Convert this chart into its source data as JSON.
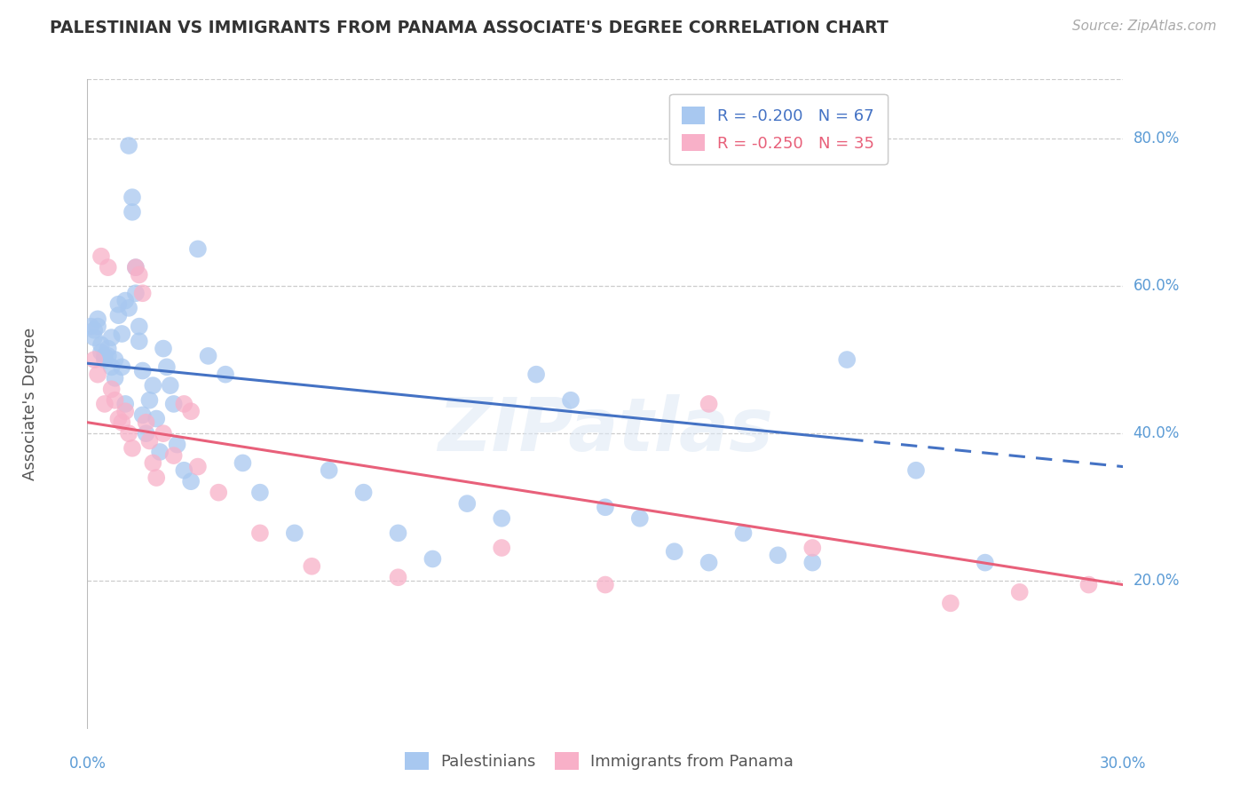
{
  "title": "PALESTINIAN VS IMMIGRANTS FROM PANAMA ASSOCIATE'S DEGREE CORRELATION CHART",
  "source": "Source: ZipAtlas.com",
  "ylabel": "Associate's Degree",
  "xmin": 0.0,
  "xmax": 0.3,
  "ymin": 0.0,
  "ymax": 0.88,
  "yticks": [
    0.2,
    0.4,
    0.6,
    0.8
  ],
  "ytick_labels": [
    "20.0%",
    "40.0%",
    "60.0%",
    "80.0%"
  ],
  "grid_color": "#cccccc",
  "watermark": "ZIPatlas",
  "series1_color": "#a8c8f0",
  "series2_color": "#f8b0c8",
  "series1_name": "Palestinians",
  "series2_name": "Immigrants from Panama",
  "series1_R": -0.2,
  "series1_N": 67,
  "series2_R": -0.25,
  "series2_N": 35,
  "trendline1_color": "#4472c4",
  "trendline2_color": "#e8607a",
  "background_color": "#ffffff",
  "trendline1_y0": 0.495,
  "trendline1_y1": 0.355,
  "trendline2_y0": 0.415,
  "trendline2_y1": 0.195,
  "trendline1_solid_end": 0.22,
  "palestinians_x": [
    0.001,
    0.002,
    0.002,
    0.003,
    0.003,
    0.004,
    0.004,
    0.005,
    0.005,
    0.006,
    0.006,
    0.007,
    0.007,
    0.008,
    0.008,
    0.009,
    0.009,
    0.01,
    0.01,
    0.011,
    0.011,
    0.012,
    0.012,
    0.013,
    0.013,
    0.014,
    0.014,
    0.015,
    0.015,
    0.016,
    0.016,
    0.017,
    0.018,
    0.019,
    0.02,
    0.021,
    0.022,
    0.023,
    0.024,
    0.025,
    0.026,
    0.028,
    0.03,
    0.032,
    0.035,
    0.04,
    0.045,
    0.05,
    0.06,
    0.07,
    0.08,
    0.09,
    0.1,
    0.11,
    0.12,
    0.13,
    0.14,
    0.15,
    0.16,
    0.17,
    0.18,
    0.19,
    0.2,
    0.21,
    0.22,
    0.24,
    0.26
  ],
  "palestinians_y": [
    0.545,
    0.54,
    0.53,
    0.555,
    0.545,
    0.52,
    0.51,
    0.505,
    0.5,
    0.515,
    0.505,
    0.49,
    0.53,
    0.475,
    0.5,
    0.575,
    0.56,
    0.535,
    0.49,
    0.44,
    0.58,
    0.57,
    0.79,
    0.72,
    0.7,
    0.625,
    0.59,
    0.525,
    0.545,
    0.485,
    0.425,
    0.4,
    0.445,
    0.465,
    0.42,
    0.375,
    0.515,
    0.49,
    0.465,
    0.44,
    0.385,
    0.35,
    0.335,
    0.65,
    0.505,
    0.48,
    0.36,
    0.32,
    0.265,
    0.35,
    0.32,
    0.265,
    0.23,
    0.305,
    0.285,
    0.48,
    0.445,
    0.3,
    0.285,
    0.24,
    0.225,
    0.265,
    0.235,
    0.225,
    0.5,
    0.35,
    0.225
  ],
  "panama_x": [
    0.002,
    0.003,
    0.004,
    0.005,
    0.006,
    0.007,
    0.008,
    0.009,
    0.01,
    0.011,
    0.012,
    0.013,
    0.014,
    0.015,
    0.016,
    0.017,
    0.018,
    0.019,
    0.02,
    0.022,
    0.025,
    0.028,
    0.032,
    0.038,
    0.05,
    0.065,
    0.09,
    0.12,
    0.15,
    0.18,
    0.21,
    0.25,
    0.27,
    0.29,
    0.03
  ],
  "panama_y": [
    0.5,
    0.48,
    0.64,
    0.44,
    0.625,
    0.46,
    0.445,
    0.42,
    0.415,
    0.43,
    0.4,
    0.38,
    0.625,
    0.615,
    0.59,
    0.415,
    0.39,
    0.36,
    0.34,
    0.4,
    0.37,
    0.44,
    0.355,
    0.32,
    0.265,
    0.22,
    0.205,
    0.245,
    0.195,
    0.44,
    0.245,
    0.17,
    0.185,
    0.195,
    0.43
  ]
}
